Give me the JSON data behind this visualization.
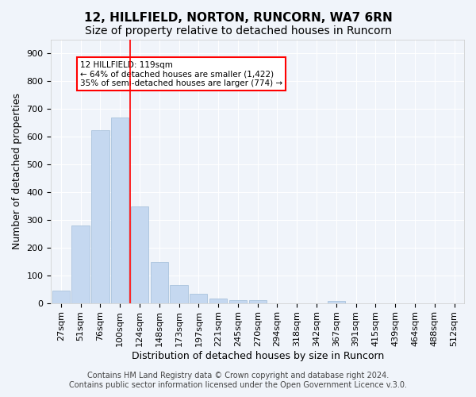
{
  "title": "12, HILLFIELD, NORTON, RUNCORN, WA7 6RN",
  "subtitle": "Size of property relative to detached houses in Runcorn",
  "xlabel": "Distribution of detached houses by size in Runcorn",
  "ylabel": "Number of detached properties",
  "bar_labels": [
    "27sqm",
    "51sqm",
    "76sqm",
    "100sqm",
    "124sqm",
    "148sqm",
    "173sqm",
    "197sqm",
    "221sqm",
    "245sqm",
    "270sqm",
    "294sqm",
    "318sqm",
    "342sqm",
    "367sqm",
    "391sqm",
    "415sqm",
    "439sqm",
    "464sqm",
    "488sqm",
    "512sqm"
  ],
  "bar_values": [
    45,
    280,
    622,
    670,
    348,
    148,
    65,
    32,
    15,
    11,
    10,
    0,
    0,
    0,
    8,
    0,
    0,
    0,
    0,
    0,
    0
  ],
  "bar_color": "#c5d8f0",
  "bar_edge_color": "#a0bcd8",
  "vline_x": 4,
  "vline_color": "red",
  "ylim": [
    0,
    950
  ],
  "yticks": [
    0,
    100,
    200,
    300,
    400,
    500,
    600,
    700,
    800,
    900
  ],
  "annotation_title": "12 HILLFIELD: 119sqm",
  "annotation_line1": "← 64% of detached houses are smaller (1,422)",
  "annotation_line2": "35% of semi-detached houses are larger (774) →",
  "annotation_box_color": "#ffffff",
  "annotation_box_edge": "red",
  "footer_line1": "Contains HM Land Registry data © Crown copyright and database right 2024.",
  "footer_line2": "Contains public sector information licensed under the Open Government Licence v.3.0.",
  "background_color": "#f0f4fa",
  "grid_color": "#ffffff",
  "title_fontsize": 11,
  "subtitle_fontsize": 10,
  "axis_label_fontsize": 9,
  "tick_fontsize": 8,
  "footer_fontsize": 7
}
